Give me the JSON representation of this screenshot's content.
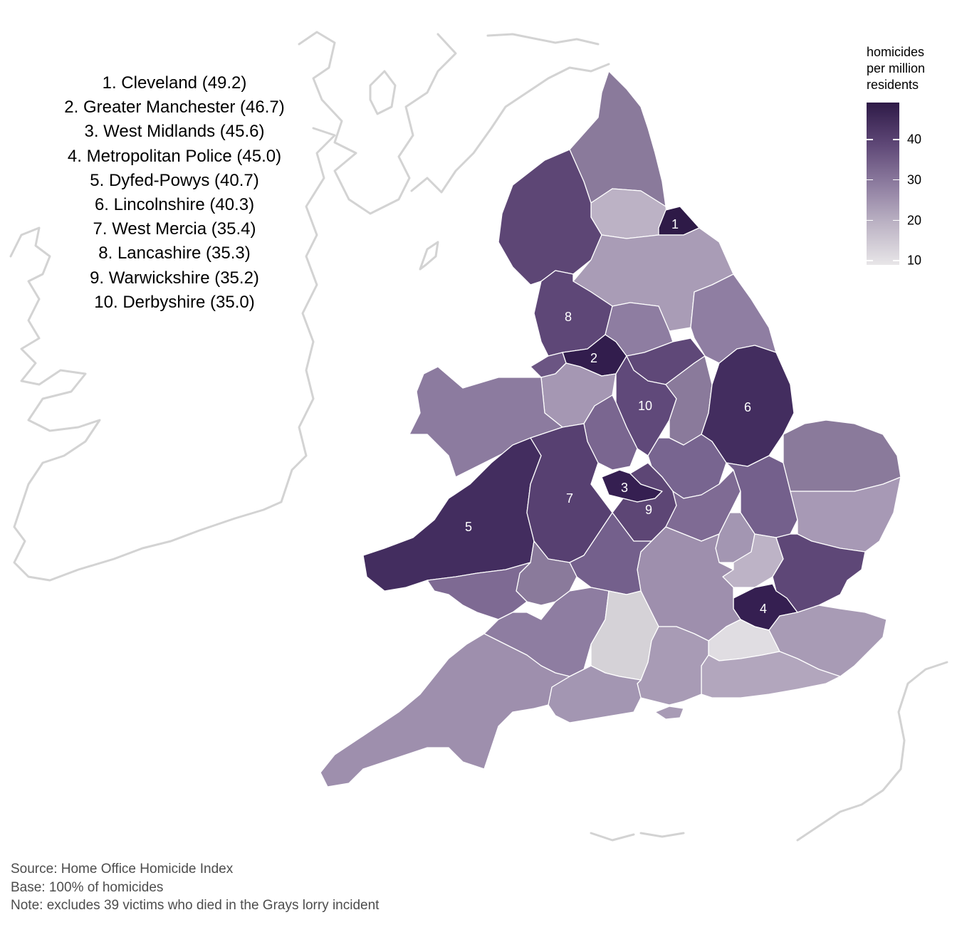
{
  "legend": {
    "title_lines": [
      "homicides",
      "per million",
      "residents"
    ],
    "ticks": [
      {
        "value": 40,
        "label": "40"
      },
      {
        "value": 30,
        "label": "30"
      },
      {
        "value": 20,
        "label": "20"
      },
      {
        "value": 10,
        "label": "10"
      }
    ],
    "range": [
      9,
      49.2
    ],
    "colors": [
      "#e8e6e8",
      "#2e1a47"
    ]
  },
  "ranking": [
    {
      "rank": 1,
      "force": "Cleveland",
      "rate": 49.2,
      "text": "1. Cleveland (49.2)"
    },
    {
      "rank": 2,
      "force": "Greater Manchester",
      "rate": 46.7,
      "text": "2. Greater Manchester (46.7)"
    },
    {
      "rank": 3,
      "force": "West Midlands",
      "rate": 45.6,
      "text": "3. West Midlands (45.6)"
    },
    {
      "rank": 4,
      "force": "Metropolitan Police",
      "rate": 45.0,
      "text": "4. Metropolitan Police (45.0)"
    },
    {
      "rank": 5,
      "force": "Dyfed-Powys",
      "rate": 40.7,
      "text": "5. Dyfed-Powys (40.7)"
    },
    {
      "rank": 6,
      "force": "Lincolnshire",
      "rate": 40.3,
      "text": "6. Lincolnshire (40.3)"
    },
    {
      "rank": 7,
      "force": "West Mercia",
      "rate": 35.4,
      "text": "7. West Mercia (35.4)"
    },
    {
      "rank": 8,
      "force": "Lancashire",
      "rate": 35.3,
      "text": "8. Lancashire (35.3)"
    },
    {
      "rank": 9,
      "force": "Warwickshire",
      "rate": 35.2,
      "text": "9. Warwickshire (35.2)"
    },
    {
      "rank": 10,
      "force": "Derbyshire",
      "rate": 35.0,
      "text": "10. Derbyshire (35.0)"
    }
  ],
  "map_labels": [
    "1",
    "2",
    "3",
    "4",
    "5",
    "6",
    "7",
    "8",
    "9",
    "10"
  ],
  "notes": {
    "source": "Source: Home Office Homicide Index",
    "base": "Base: 100% of homicides",
    "note": "Note: excludes 39 victims who died in the Grays lorry incident"
  },
  "colors": {
    "fill_low": "#e8e6e8",
    "fill_high": "#2e1a47",
    "coastline": "#d3d3d3",
    "border": "#ffffff"
  }
}
